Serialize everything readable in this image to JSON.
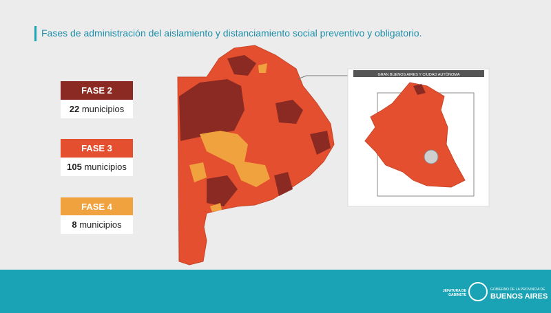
{
  "title": "Fases de administración del aislamiento y distanciamiento social preventivo y obligatorio.",
  "legend": [
    {
      "phase": "FASE 2",
      "count": "22",
      "unit": "municipios",
      "color": "#8a2a22"
    },
    {
      "phase": "FASE 3",
      "count": "105",
      "unit": "municipios",
      "color": "#e4502f"
    },
    {
      "phase": "FASE 4",
      "count": "8",
      "unit": "municipios",
      "color": "#f0a23e"
    }
  ],
  "inset": {
    "title": "GRAN BUENOS AIRES Y CIUDAD AUTÓNOMA"
  },
  "footer": {
    "left": "JEFATURA DE GABINETE",
    "right_top": "GOBIERNO DE LA PROVINCIA DE",
    "right_main": "BUENOS AIRES"
  }
}
